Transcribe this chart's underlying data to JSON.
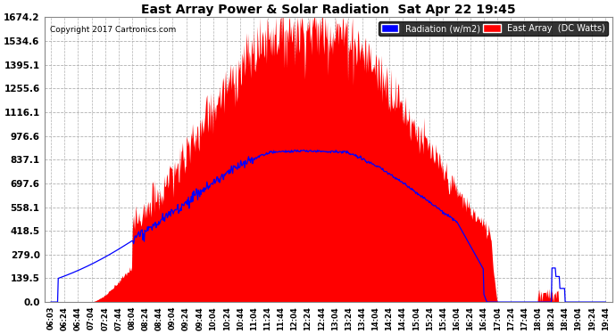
{
  "title": "East Array Power & Solar Radiation  Sat Apr 22 19:45",
  "copyright": "Copyright 2017 Cartronics.com",
  "yticks": [
    0.0,
    139.5,
    279.0,
    418.5,
    558.1,
    697.6,
    837.1,
    976.6,
    1116.1,
    1255.6,
    1395.1,
    1534.6,
    1674.2
  ],
  "ymax": 1674.2,
  "background_color": "#ffffff",
  "plot_bg_color": "#ffffff",
  "grid_color": "#b0b0b0",
  "bar_color": "#ff0000",
  "line_color": "#0000ff",
  "legend_radiation_bg": "#0000ff",
  "legend_east_array_bg": "#ff0000",
  "xtick_labels": [
    "06:03",
    "06:24",
    "06:44",
    "07:04",
    "07:24",
    "07:44",
    "08:04",
    "08:24",
    "08:44",
    "09:04",
    "09:24",
    "09:44",
    "10:04",
    "10:24",
    "10:44",
    "11:04",
    "11:24",
    "11:44",
    "12:04",
    "12:24",
    "12:44",
    "13:04",
    "13:24",
    "13:44",
    "14:04",
    "14:24",
    "14:44",
    "15:04",
    "15:24",
    "15:44",
    "16:04",
    "16:24",
    "16:44",
    "17:04",
    "17:24",
    "17:44",
    "18:04",
    "18:24",
    "18:44",
    "19:04",
    "19:24",
    "19:44"
  ],
  "n_xticks": 42,
  "n_points": 840,
  "figsize": [
    6.9,
    3.75
  ],
  "dpi": 100
}
